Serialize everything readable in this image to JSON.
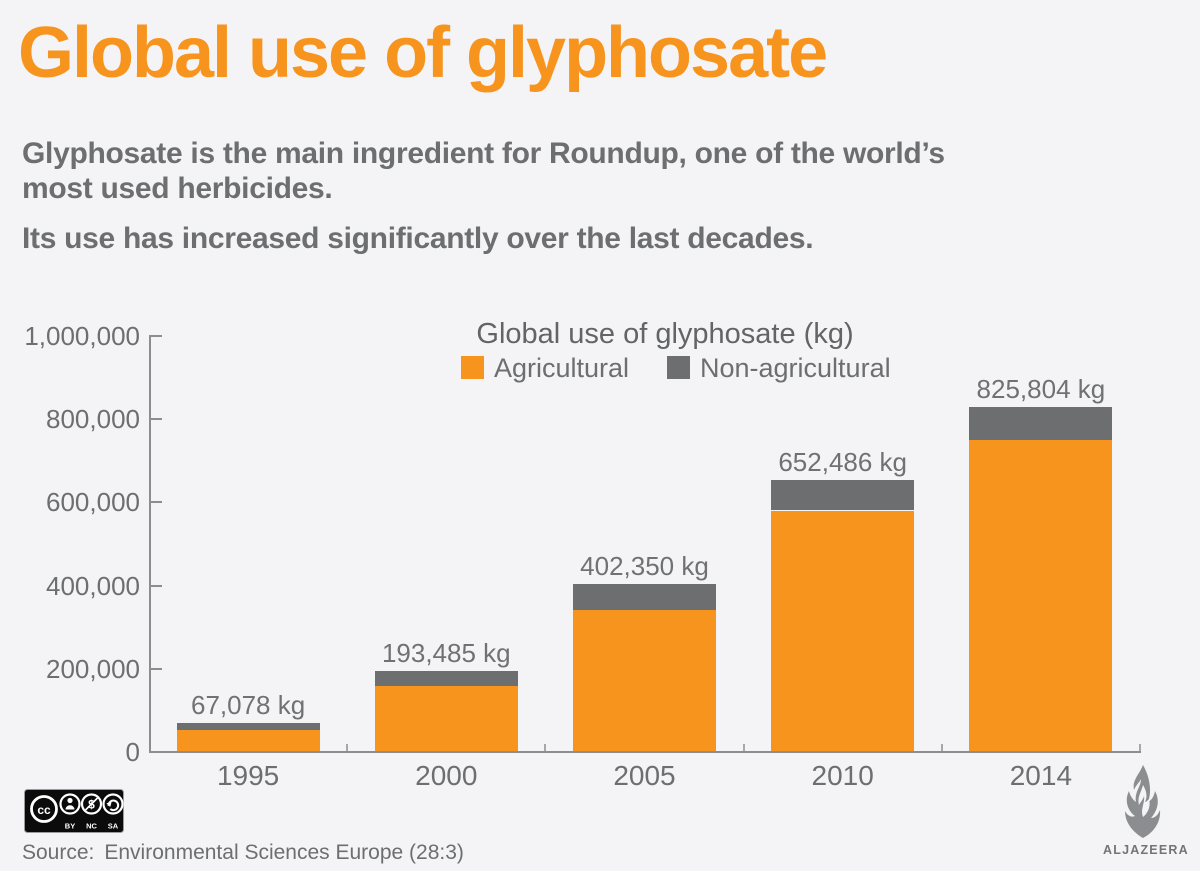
{
  "page_background": "#f4f4f6",
  "header": {
    "title": "Global use of glyphosate",
    "title_color": "#f7941e",
    "intro_p1_line1": "Glyphosate is the main ingredient for Roundup, one of the world’s",
    "intro_p1_line2": "most used herbicides.",
    "intro_p2": "Its use has increased significantly over the last decades."
  },
  "chart_data": {
    "type": "bar",
    "stacked": true,
    "title": "Global use of glyphosate (kg)",
    "categories": [
      "1995",
      "2000",
      "2005",
      "2010",
      "2014"
    ],
    "series": [
      {
        "name": "Agricultural",
        "color": "#f7941e",
        "values": [
          51078,
          157385,
          338950,
          578124,
          746580
        ]
      },
      {
        "name": "Non-agricultural",
        "color": "#6d6e70",
        "values": [
          16000,
          36100,
          63400,
          74362,
          79224
        ]
      }
    ],
    "totals": [
      67078,
      193485,
      402350,
      652486,
      825804
    ],
    "total_labels": [
      "67,078 kg",
      "193,485 kg",
      "402,350 kg",
      "652,486 kg",
      "825,804 kg"
    ],
    "xlabel": "",
    "ylabel": "",
    "ylim": [
      0,
      1000000
    ],
    "ytick_step": 200000,
    "ytick_labels": [
      "0",
      "200,000",
      "400,000",
      "600,000",
      "800,000",
      "1,000,000"
    ],
    "grid": false,
    "legend_position": "top-center",
    "axis_color": "#8b8d90"
  },
  "footer": {
    "license": {
      "name": "cc-by-nc-sa",
      "cc_glyph": "cc",
      "nc_glyph": "$",
      "letters": [
        "BY",
        "NC",
        "SA"
      ],
      "icons": [
        "cc-icon",
        "by-person-icon",
        "nc-no-dollar-icon",
        "sa-share-alike-icon"
      ]
    },
    "source_label": "Source:",
    "source_value": "Environmental Sciences Europe (28:3)",
    "logo_text": "ALJAZEERA"
  }
}
